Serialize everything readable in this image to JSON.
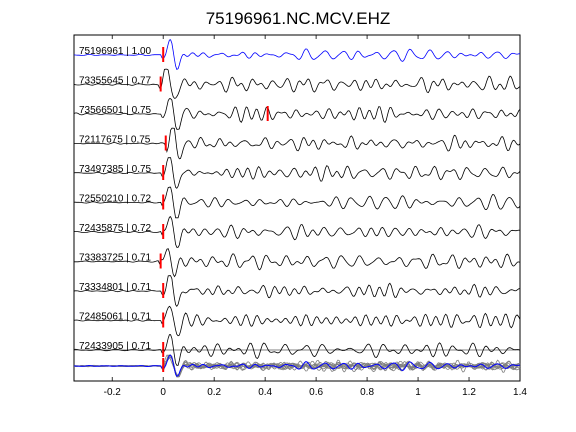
{
  "chart_data": {
    "type": "line",
    "title": "75196961.NC.MCV.EHZ",
    "xlabel": "",
    "ylabel": "",
    "xlim": [
      -0.35,
      1.4
    ],
    "x_ticks": [
      -0.2,
      0,
      0.2,
      0.4,
      0.6,
      0.8,
      1,
      1.2,
      1.4
    ],
    "x_tick_labels": [
      "-0.2",
      "0",
      "0.2",
      "0.4",
      "0.6",
      "0.8",
      "1",
      "1.2",
      "1.4"
    ],
    "grid": false,
    "legend": "none",
    "colors": {
      "reference": "#0000ff",
      "trace": "#000000",
      "stack": "#808080",
      "pick": "#ff0000"
    },
    "traces": [
      {
        "label": "75196961 | 1.00",
        "event_id": "75196961",
        "correlation": 1.0,
        "pick_time": 0.0,
        "color": "#0000ff"
      },
      {
        "label": "73355645 | 0.77",
        "event_id": "73355645",
        "correlation": 0.77,
        "pick_time": -0.01,
        "color": "#000000"
      },
      {
        "label": "73566501 | 0.75",
        "event_id": "73566501",
        "correlation": 0.75,
        "pick_time": 0.41,
        "color": "#000000"
      },
      {
        "label": "72117675 | 0.75",
        "event_id": "72117675",
        "correlation": 0.75,
        "pick_time": 0.01,
        "color": "#000000"
      },
      {
        "label": "73497385 | 0.75",
        "event_id": "73497385",
        "correlation": 0.75,
        "pick_time": 0.0,
        "color": "#000000"
      },
      {
        "label": "72550210 | 0.72",
        "event_id": "72550210",
        "correlation": 0.72,
        "pick_time": 0.0,
        "color": "#000000"
      },
      {
        "label": "72435875 | 0.72",
        "event_id": "72435875",
        "correlation": 0.72,
        "pick_time": 0.0,
        "color": "#000000"
      },
      {
        "label": "73383725 | 0.71",
        "event_id": "73383725",
        "correlation": 0.71,
        "pick_time": -0.01,
        "color": "#000000"
      },
      {
        "label": "73334801 | 0.71",
        "event_id": "73334801",
        "correlation": 0.71,
        "pick_time": 0.0,
        "color": "#000000"
      },
      {
        "label": "72485061 | 0.71",
        "event_id": "72485061",
        "correlation": 0.71,
        "pick_time": 0.0,
        "color": "#000000"
      },
      {
        "label": "72433905 | 0.71",
        "event_id": "72433905",
        "correlation": 0.71,
        "pick_time": 0.0,
        "color": "#000000"
      }
    ],
    "stack_panel": {
      "pick_time": 0.0,
      "overlay_count": 10
    }
  }
}
